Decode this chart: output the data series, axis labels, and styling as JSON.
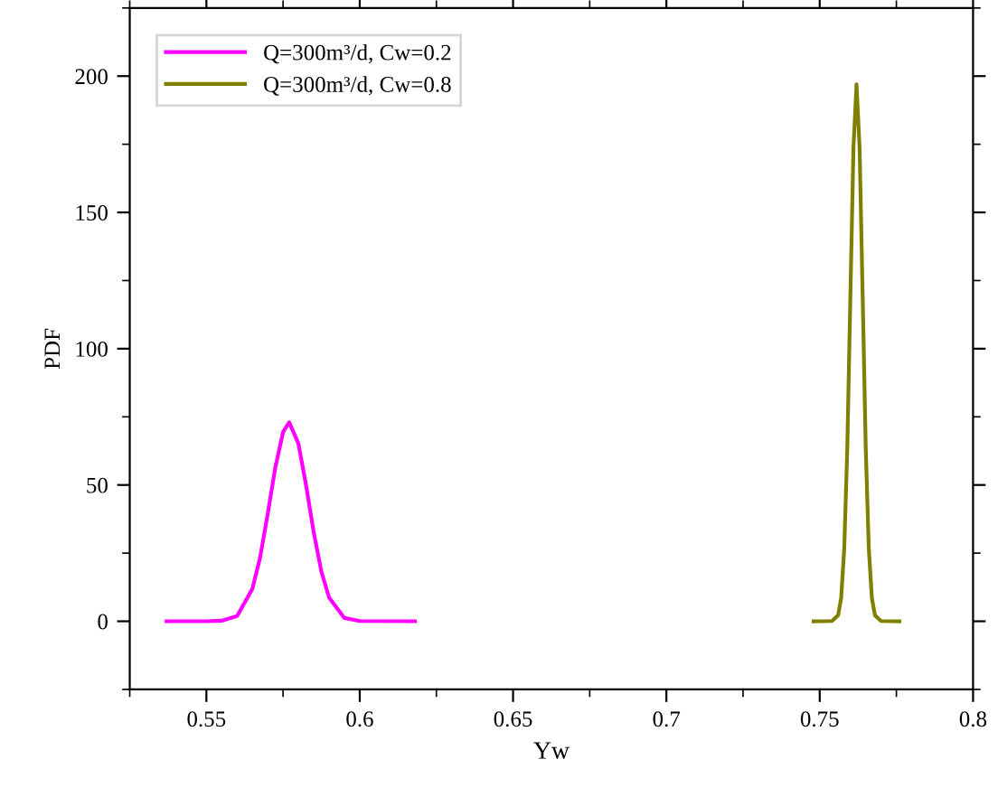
{
  "chart_data": {
    "type": "line",
    "xlabel": "Yw",
    "ylabel": "PDF",
    "xlim": [
      0.525,
      0.8
    ],
    "xticks": [
      0.55,
      0.6,
      0.65,
      0.7,
      0.75,
      0.8
    ],
    "ylim": [
      -25,
      225
    ],
    "yticks": [
      0,
      50,
      100,
      150,
      200
    ],
    "grid": false,
    "legend": "top left",
    "marker": "none",
    "line_style": "solid",
    "series": [
      {
        "name": "Q=300m³/d, Cw=0.2",
        "color": "#ff00ff",
        "x": [
          0.537,
          0.55,
          0.555,
          0.56,
          0.565,
          0.5675,
          0.57,
          0.5725,
          0.575,
          0.577,
          0.58,
          0.5825,
          0.585,
          0.5875,
          0.59,
          0.595,
          0.6,
          0.618
        ],
        "values": [
          0,
          0,
          0.2,
          1.9,
          11.9,
          23.3,
          39.4,
          56.6,
          69.4,
          73,
          65.2,
          49.9,
          32.6,
          18.2,
          8.7,
          1.2,
          0.1,
          0
        ]
      },
      {
        "name": "Q=300m³/d, Cw=0.8",
        "color": "#808000",
        "x": [
          0.748,
          0.754,
          0.756,
          0.757,
          0.758,
          0.759,
          0.76,
          0.761,
          0.762,
          0.763,
          0.764,
          0.765,
          0.766,
          0.767,
          0.768,
          0.77,
          0.776
        ],
        "values": [
          0,
          0.1,
          2.2,
          8.6,
          26.7,
          64,
          119.5,
          173.8,
          197,
          173.8,
          119.5,
          64,
          26.7,
          8.6,
          2.2,
          0.1,
          0
        ]
      }
    ]
  }
}
